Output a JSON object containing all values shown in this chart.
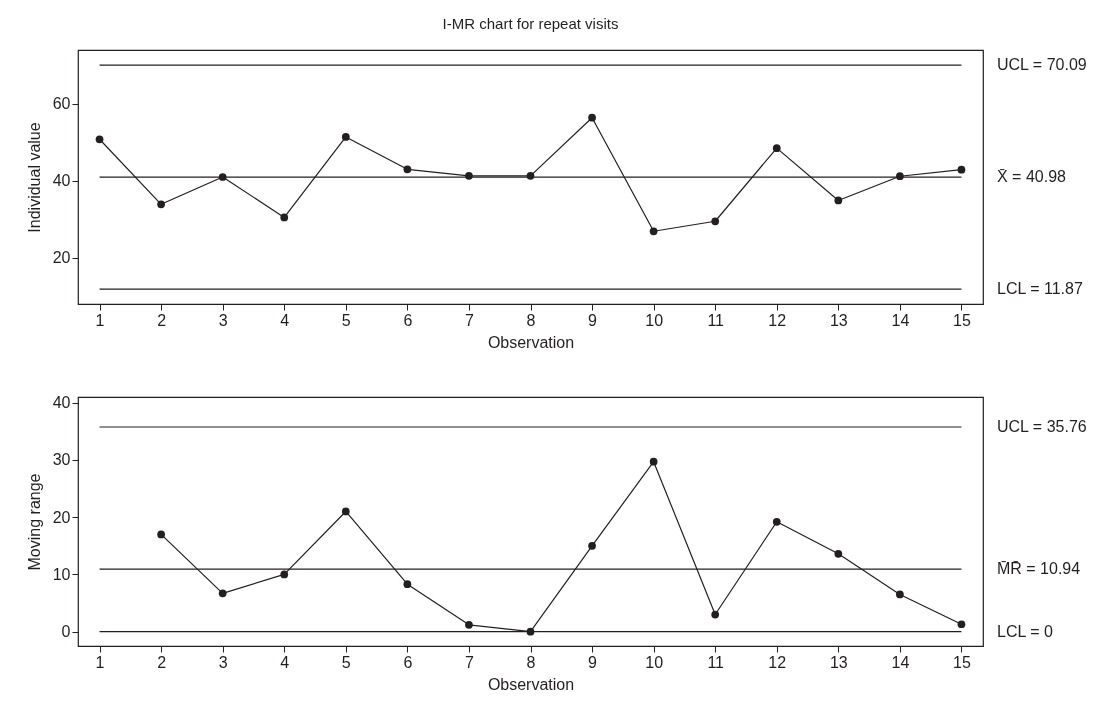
{
  "chart_data": [
    {
      "type": "line",
      "title": "I-MR chart for repeat visits",
      "xlabel": "Observation",
      "ylabel": "Individual value",
      "x": [
        1,
        2,
        3,
        4,
        5,
        6,
        7,
        8,
        9,
        10,
        11,
        12,
        13,
        14,
        15
      ],
      "series": [
        {
          "color": "#231f20",
          "values": [
            50.8,
            33.9,
            41.0,
            30.5,
            51.4,
            43.0,
            41.3,
            41.3,
            56.4,
            26.9,
            29.5,
            48.5,
            34.9,
            41.2,
            42.9
          ]
        }
      ],
      "xlim": [
        0.65,
        15.35
      ],
      "xticks": [
        1,
        2,
        3,
        4,
        5,
        6,
        7,
        8,
        9,
        10,
        11,
        12,
        13,
        14,
        15
      ],
      "ylim": [
        8,
        74
      ],
      "yticks": [
        20,
        40,
        60
      ],
      "marker": "circle",
      "line_style": "solid",
      "grid": false,
      "ref_lines": [
        {
          "axis": "y",
          "value": 70.09,
          "label": "UCL = 70.09",
          "color": "#231f20"
        },
        {
          "axis": "y",
          "value": 40.98,
          "label": "X̄ = 40.98",
          "color": "#231f20"
        },
        {
          "axis": "y",
          "value": 11.87,
          "label": "LCL = 11.87",
          "color": "#231f20"
        }
      ]
    },
    {
      "type": "line",
      "xlabel": "Observation",
      "ylabel": "Moving range",
      "series": [
        {
          "color": "#231f20",
          "x": [
            2,
            3,
            4,
            5,
            6,
            7,
            8,
            9,
            10,
            11,
            12,
            13,
            14,
            15
          ],
          "values": [
            17.0,
            6.7,
            10.0,
            21.0,
            8.3,
            1.2,
            0,
            15.0,
            29.7,
            3.0,
            19.2,
            13.6,
            6.5,
            1.3
          ]
        }
      ],
      "xlim": [
        0.65,
        15.35
      ],
      "xticks": [
        1,
        2,
        3,
        4,
        5,
        6,
        7,
        8,
        9,
        10,
        11,
        12,
        13,
        14,
        15
      ],
      "ylim": [
        -2.5,
        41
      ],
      "yticks": [
        0,
        10,
        20,
        30,
        40
      ],
      "marker": "circle",
      "line_style": "solid",
      "grid": false,
      "ref_lines": [
        {
          "axis": "y",
          "value": 35.76,
          "label": "UCL = 35.76",
          "color": "#231f20"
        },
        {
          "axis": "y",
          "value": 10.94,
          "label": "M̄R̄ = 10.94",
          "color": "#231f20"
        },
        {
          "axis": "y",
          "value": 0,
          "label": "LCL = 0",
          "color": "#231f20"
        }
      ]
    }
  ]
}
